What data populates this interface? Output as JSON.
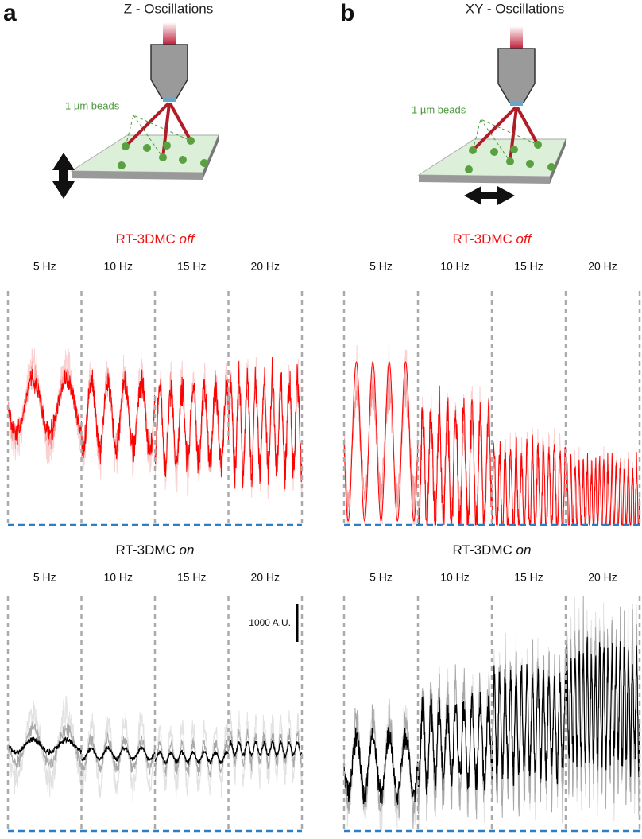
{
  "panels": [
    {
      "letter": "a",
      "title": "Z - Oscillations",
      "beads_label": "1 µm beads",
      "off": {
        "label": "RT-3DMC",
        "state": "off",
        "freqs": [
          "5 Hz",
          "10 Hz",
          "15 Hz",
          "20 Hz"
        ]
      },
      "on": {
        "label": "RT-3DMC",
        "state": "on",
        "freqs": [
          "5 Hz",
          "10 Hz",
          "15 Hz",
          "20 Hz"
        ]
      },
      "scale_bar": "1000 A.U."
    },
    {
      "letter": "b",
      "title": "XY - Oscillations",
      "beads_label": "1 µm beads",
      "off": {
        "label": "RT-3DMC",
        "state": "off",
        "freqs": [
          "5 Hz",
          "10 Hz",
          "15 Hz",
          "20 Hz"
        ]
      },
      "on": {
        "label": "RT-3DMC",
        "state": "on",
        "freqs": [
          "5 Hz",
          "10 Hz",
          "15 Hz",
          "20 Hz"
        ]
      }
    }
  ]
}
